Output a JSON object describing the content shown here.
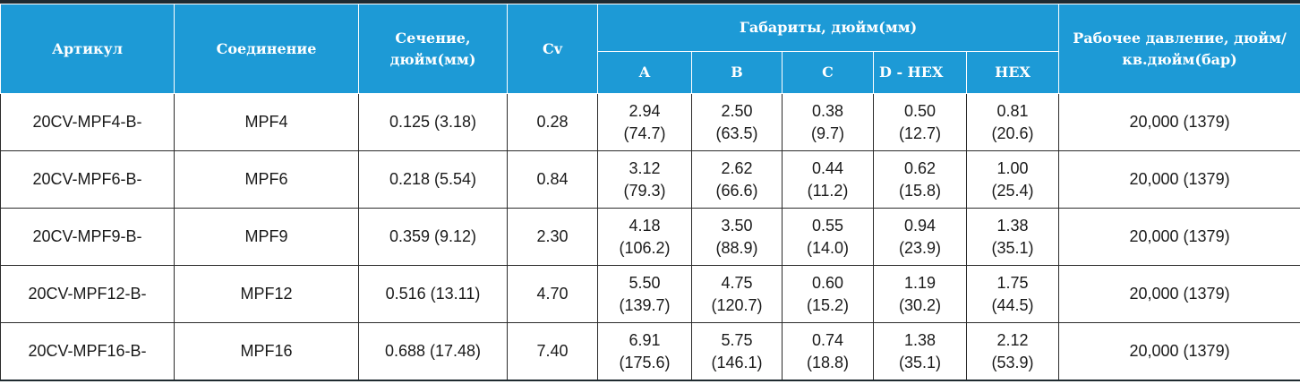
{
  "header": {
    "article": "Артикул",
    "connection": "Соединение",
    "section_line1": "Сечение,",
    "section_line2": "дюйм(мм)",
    "cv": "Cv",
    "dimensions": "Габариты, дюйм(мм)",
    "dim_a": "A",
    "dim_b": "B",
    "dim_c": "C",
    "dim_dhex": "D - HEX",
    "dim_hex": "HEX",
    "pressure_line1": "Рабочее давление,",
    "pressure_line2": "дюйм/кв.дюйм(бар)"
  },
  "rows": [
    {
      "article": "20CV-MPF4-B-",
      "connection": "MPF4",
      "section": "0.125 (3.18)",
      "cv": "0.28",
      "a1": "2.94",
      "a2": "(74.7)",
      "b1": "2.50",
      "b2": "(63.5)",
      "c1": "0.38",
      "c2": "(9.7)",
      "d1": "0.50",
      "d2": "(12.7)",
      "h1": "0.81",
      "h2": "(20.6)",
      "pressure": "20,000 (1379)"
    },
    {
      "article": "20CV-MPF6-B-",
      "connection": "MPF6",
      "section": "0.218 (5.54)",
      "cv": "0.84",
      "a1": "3.12",
      "a2": "(79.3)",
      "b1": "2.62",
      "b2": "(66.6)",
      "c1": "0.44",
      "c2": "(11.2)",
      "d1": "0.62",
      "d2": "(15.8)",
      "h1": "1.00",
      "h2": "(25.4)",
      "pressure": "20,000 (1379)"
    },
    {
      "article": "20CV-MPF9-B-",
      "connection": "MPF9",
      "section": "0.359 (9.12)",
      "cv": "2.30",
      "a1": "4.18",
      "a2": "(106.2)",
      "b1": "3.50",
      "b2": "(88.9)",
      "c1": "0.55",
      "c2": "(14.0)",
      "d1": "0.94",
      "d2": "(23.9)",
      "h1": "1.38",
      "h2": "(35.1)",
      "pressure": "20,000 (1379)"
    },
    {
      "article": "20CV-MPF12-B-",
      "connection": "MPF12",
      "section": "0.516 (13.11)",
      "cv": "4.70",
      "a1": "5.50",
      "a2": "(139.7)",
      "b1": "4.75",
      "b2": "(120.7)",
      "c1": "0.60",
      "c2": "(15.2)",
      "d1": "1.19",
      "d2": "(30.2)",
      "h1": "1.75",
      "h2": "(44.5)",
      "pressure": "20,000 (1379)"
    },
    {
      "article": "20CV-MPF16-B-",
      "connection": "MPF16",
      "section": "0.688 (17.48)",
      "cv": "7.40",
      "a1": "6.91",
      "a2": "(175.6)",
      "b1": "5.75",
      "b2": "(146.1)",
      "c1": "0.74",
      "c2": "(18.8)",
      "d1": "1.38",
      "d2": "(35.1)",
      "h1": "2.12",
      "h2": "(53.9)",
      "pressure": "20,000 (1379)"
    }
  ]
}
